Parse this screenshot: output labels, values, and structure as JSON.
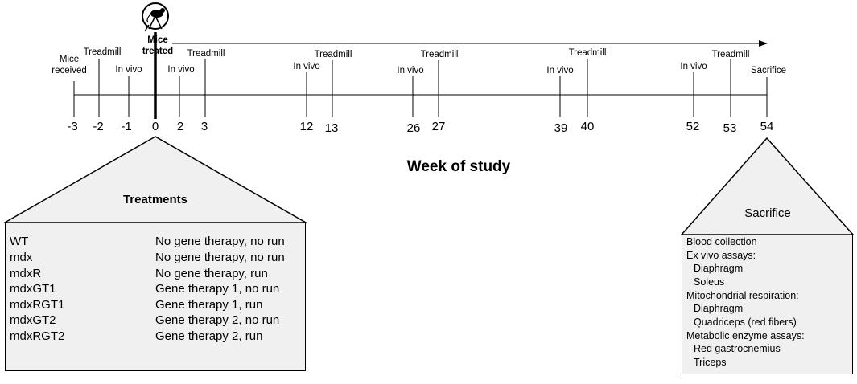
{
  "timeline": {
    "axis_title": "Week of study",
    "treated_label_line1": "Mice",
    "treated_label_line2": "treated",
    "ticks": [
      "-3",
      "-2",
      "-1",
      "0",
      "2",
      "3",
      "12",
      "13",
      "26",
      "27",
      "39",
      "40",
      "52",
      "53",
      "54"
    ],
    "events": {
      "mice_received_line1": "Mice",
      "mice_received_line2": "received",
      "treadmill": "Treadmill",
      "in_vivo": "In vivo",
      "sacrifice": "Sacrifice"
    },
    "icons": [
      "mouse-on-wheel-icon"
    ],
    "colors": {
      "panel_fill": "#f0f0f0",
      "line": "#000000"
    }
  },
  "treatments": {
    "title": "Treatments",
    "rows": [
      {
        "group": "WT",
        "desc": "No gene therapy, no run"
      },
      {
        "group": "mdx",
        "desc": "No gene therapy, no run"
      },
      {
        "group": "mdxR",
        "desc": "No gene therapy, run"
      },
      {
        "group": "mdxGT1",
        "desc": "Gene therapy 1, no run"
      },
      {
        "group": "mdxRGT1",
        "desc": "Gene therapy 1, run"
      },
      {
        "group": "mdxGT2",
        "desc": "Gene therapy 2, no run"
      },
      {
        "group": "mdxRGT2",
        "desc": "Gene therapy 2, run"
      }
    ]
  },
  "sacrifice": {
    "title": "Sacrifice",
    "items": [
      {
        "text": "Blood collection",
        "sub": false
      },
      {
        "text": "Ex vivo assays:",
        "sub": false
      },
      {
        "text": "Diaphragm",
        "sub": true
      },
      {
        "text": "Soleus",
        "sub": true
      },
      {
        "text": "Mitochondrial respiration:",
        "sub": false
      },
      {
        "text": "Diaphragm",
        "sub": true
      },
      {
        "text": "Quadriceps (red fibers)",
        "sub": true
      },
      {
        "text": "Metabolic enzyme assays:",
        "sub": false
      },
      {
        "text": "Red gastrocnemius",
        "sub": true
      },
      {
        "text": "Triceps",
        "sub": true
      }
    ]
  }
}
